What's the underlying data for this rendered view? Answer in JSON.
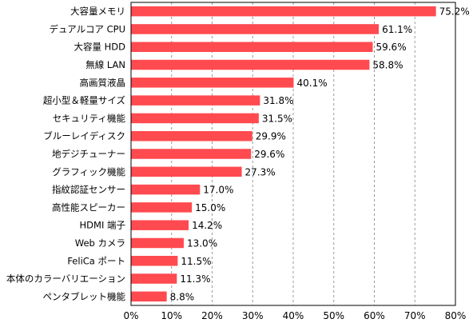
{
  "chart_data": {
    "type": "bar",
    "orientation": "horizontal",
    "categories": [
      "大容量メモリ",
      "デュアルコア CPU",
      "大容量 HDD",
      "無線 LAN",
      "高画質液晶",
      "超小型＆軽量サイズ",
      "セキュリティ機能",
      "ブルーレイディスク",
      "地デジチューナー",
      "グラフィック機能",
      "指紋認証センサー",
      "高性能スピーカー",
      "HDMI 端子",
      "Web カメラ",
      "FeliCa ポート",
      "本体のカラーバリエーション",
      "ペンタブレット機能"
    ],
    "values": [
      75.2,
      61.1,
      59.6,
      58.8,
      40.1,
      31.8,
      31.5,
      29.9,
      29.6,
      27.3,
      17.0,
      15.0,
      14.2,
      13.0,
      11.5,
      11.3,
      8.8
    ],
    "value_labels": [
      "75.2%",
      "61.1%",
      "59.6%",
      "58.8%",
      "40.1%",
      "31.8%",
      "31.5%",
      "29.9%",
      "29.6%",
      "27.3%",
      "17.0%",
      "15.0%",
      "14.2%",
      "13.0%",
      "11.5%",
      "11.3%",
      "8.8%"
    ],
    "xlim": [
      0,
      80
    ],
    "xticks": [
      "0%",
      "10%",
      "20%",
      "30%",
      "40%",
      "50%",
      "60%",
      "70%",
      "80%"
    ],
    "grid": "vertical-dashed",
    "title": "",
    "xlabel": "",
    "ylabel": "",
    "bar_color": "#ff4a4f"
  }
}
